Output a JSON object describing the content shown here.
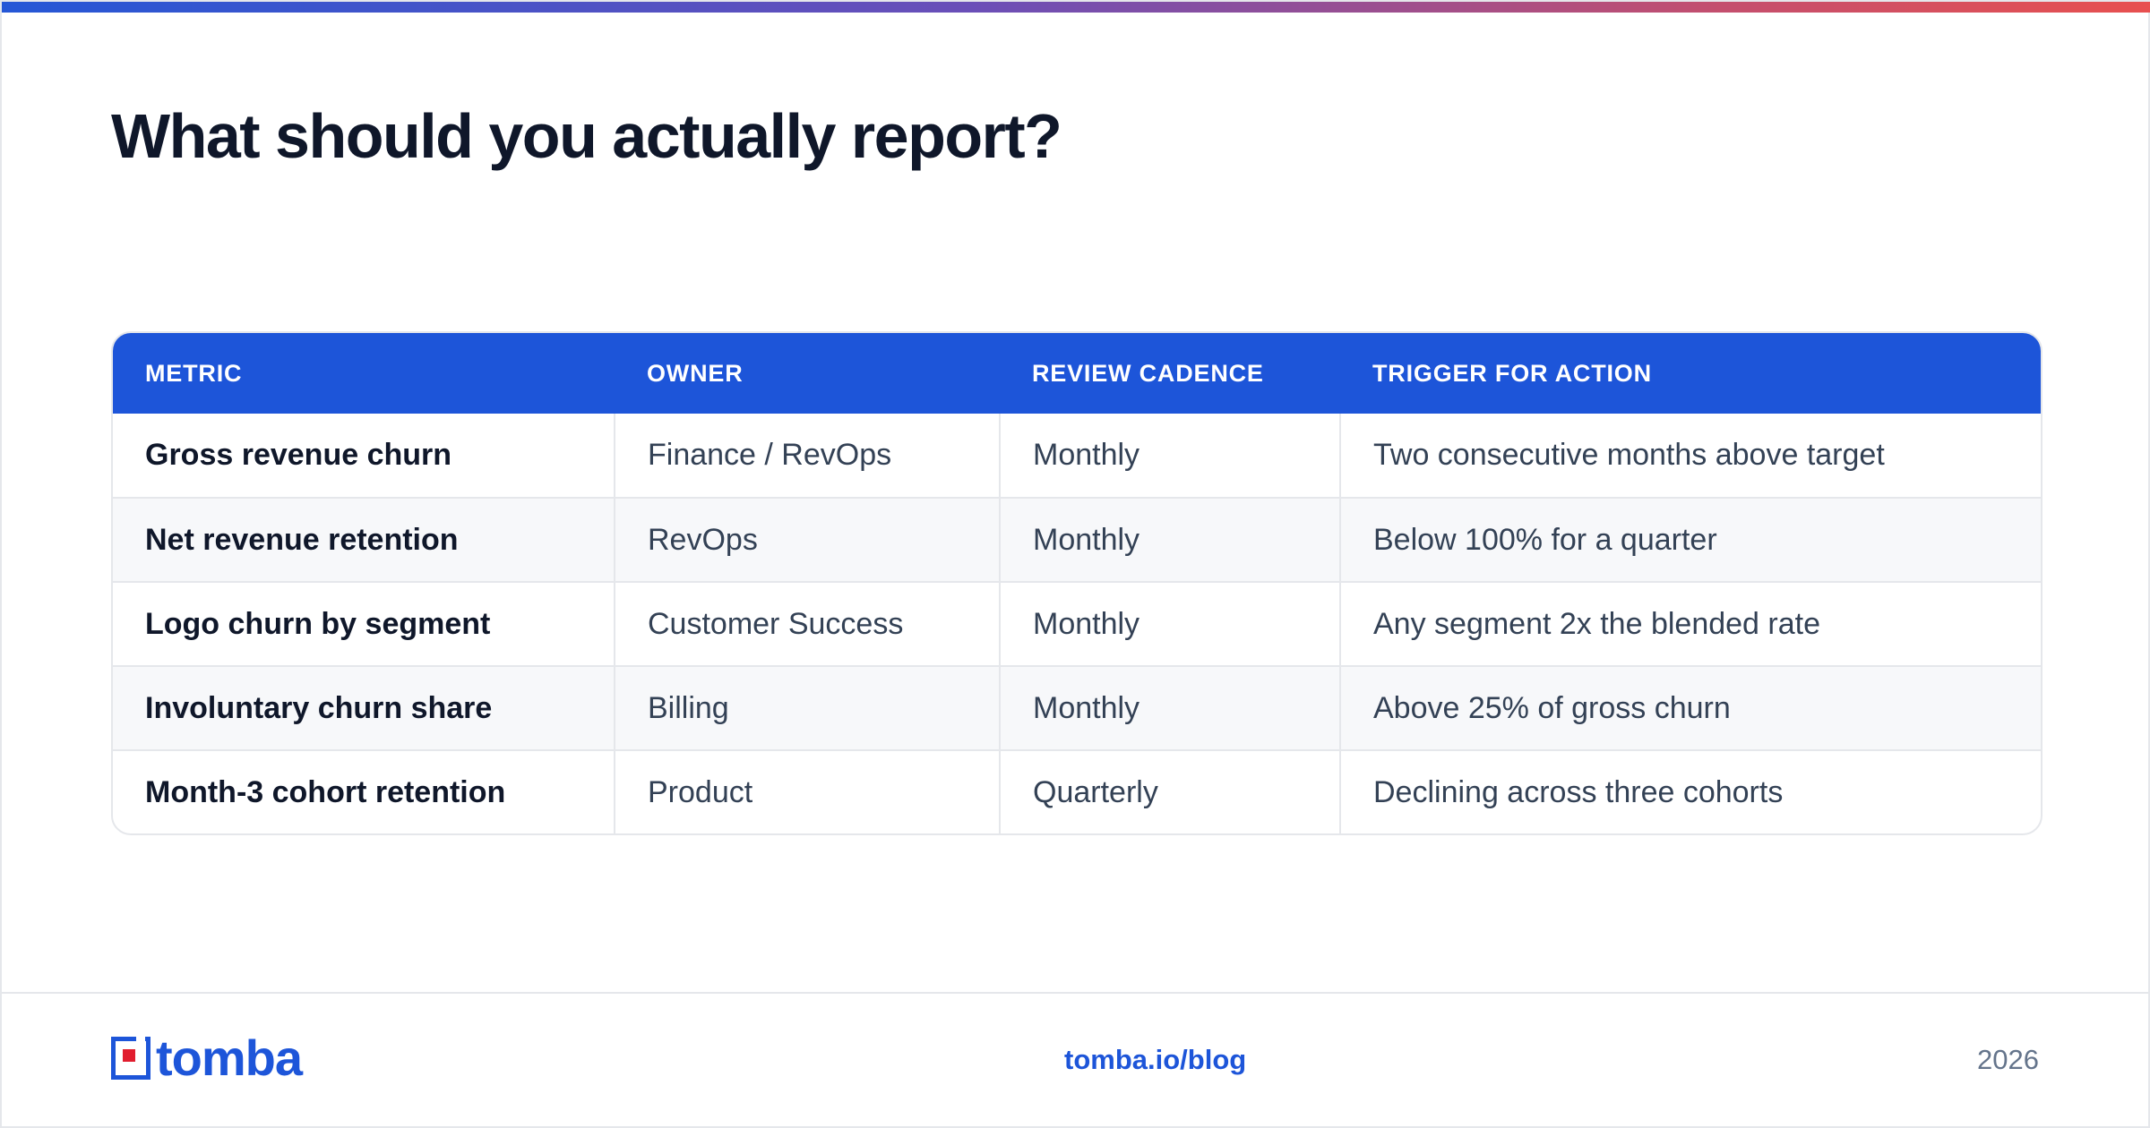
{
  "page": {
    "title": "What should you actually report?"
  },
  "table": {
    "headers": [
      "METRIC",
      "OWNER",
      "REVIEW CADENCE",
      "TRIGGER FOR ACTION"
    ],
    "rows": [
      [
        "Gross revenue churn",
        "Finance / RevOps",
        "Monthly",
        "Two consecutive months above target"
      ],
      [
        "Net revenue retention",
        "RevOps",
        "Monthly",
        "Below 100% for a quarter"
      ],
      [
        "Logo churn by segment",
        "Customer Success",
        "Monthly",
        "Any segment 2x the blended rate"
      ],
      [
        "Involuntary churn share",
        "Billing",
        "Monthly",
        "Above 25% of gross churn"
      ],
      [
        "Month-3 cohort retention",
        "Product",
        "Quarterly",
        "Declining across three cohorts"
      ]
    ]
  },
  "footer": {
    "logo_text": "tomba",
    "link": "tomba.io/blog",
    "year": "2026"
  },
  "colors": {
    "accent_blue": "#1d55d9",
    "title_text": "#0f172a",
    "logo_red": "#e11d2e"
  }
}
